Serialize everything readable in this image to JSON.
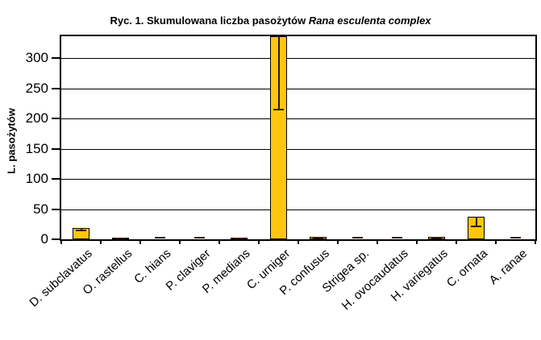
{
  "title": {
    "prefix": "Ryc. 1. Skumulowana liczba pasożytów",
    "species": "Rana esculenta complex"
  },
  "chart_data": {
    "type": "bar",
    "title": "Ryc. 1. Skumulowana liczba pasożytów Rana esculenta complex",
    "xlabel": "",
    "ylabel": "L. pasożytów",
    "categories": [
      "D. subclavatus",
      "O. rastellus",
      "C. hians",
      "P. claviger",
      "P. medians",
      "C. urniger",
      "P. confusus",
      "Strigea sp.",
      "H. ovocaudatus",
      "H. variegatus",
      "C. ornata",
      "A. ranae"
    ],
    "values": [
      19,
      3,
      1,
      1,
      3,
      336,
      4,
      1,
      1,
      4,
      37,
      1
    ],
    "error_low": [
      15,
      2,
      null,
      null,
      2,
      215,
      2.5,
      null,
      null,
      3,
      22,
      null
    ],
    "ylim": [
      0,
      336
    ],
    "y_ticks": [
      0,
      50,
      100,
      150,
      200,
      250,
      300
    ],
    "grid": true,
    "legend": false,
    "notes": "C. urniger bar exceeds axis maximum and is clipped at the top of the plot; error whisker extends down to ~215",
    "colors": {
      "bar_fill": "#FFC60D",
      "bar_border": "#000000",
      "error_bar": "#331900",
      "grid": "#000000",
      "background": "#FFFFFF"
    }
  }
}
